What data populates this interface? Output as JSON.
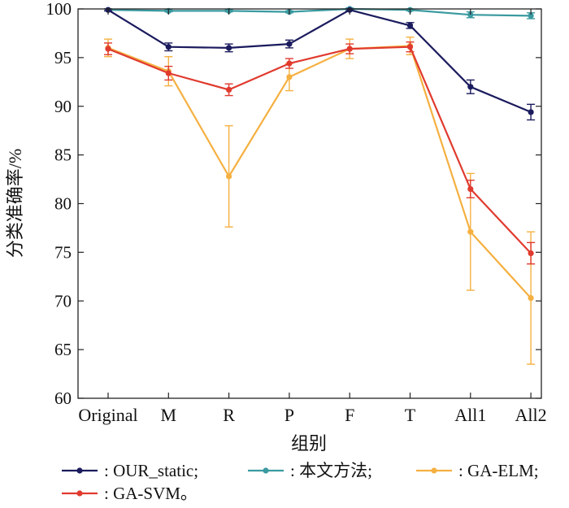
{
  "chart_data": {
    "type": "line",
    "title": "",
    "xlabel": "组别",
    "ylabel": "分类准确率/%",
    "ylim": [
      60,
      100
    ],
    "yticks": [
      60,
      65,
      70,
      75,
      80,
      85,
      90,
      95,
      100
    ],
    "categories": [
      "Original",
      "M",
      "R",
      "P",
      "F",
      "T",
      "All1",
      "All2"
    ],
    "grid": false,
    "legend_position": "bottom",
    "series": [
      {
        "name": ": OUR_static;",
        "color": "#1b1b5e",
        "values": [
          99.9,
          96.1,
          96.0,
          96.4,
          99.9,
          98.3,
          92.0,
          89.4
        ],
        "errors": [
          0.1,
          0.4,
          0.4,
          0.4,
          0.1,
          0.3,
          0.7,
          0.8
        ]
      },
      {
        "name": ": 本文方法;",
        "color": "#3a9aa0",
        "values": [
          99.9,
          99.8,
          99.8,
          99.7,
          100.0,
          99.9,
          99.4,
          99.3
        ],
        "errors": [
          0.1,
          0.1,
          0.1,
          0.1,
          0.1,
          0.1,
          0.3,
          0.3
        ]
      },
      {
        "name": ": GA-ELM;",
        "color": "#f5b041",
        "values": [
          96.0,
          93.6,
          82.8,
          93.0,
          95.9,
          96.2,
          77.1,
          70.3
        ],
        "errors": [
          0.9,
          1.5,
          5.2,
          1.4,
          1.0,
          0.9,
          6.0,
          6.8
        ]
      },
      {
        "name": ": GA-SVM。",
        "color": "#e03a2e",
        "values": [
          95.9,
          93.4,
          91.7,
          94.4,
          95.9,
          96.1,
          81.5,
          74.9
        ],
        "errors": [
          0.6,
          0.7,
          0.6,
          0.5,
          0.5,
          0.5,
          0.9,
          1.1
        ]
      }
    ]
  }
}
